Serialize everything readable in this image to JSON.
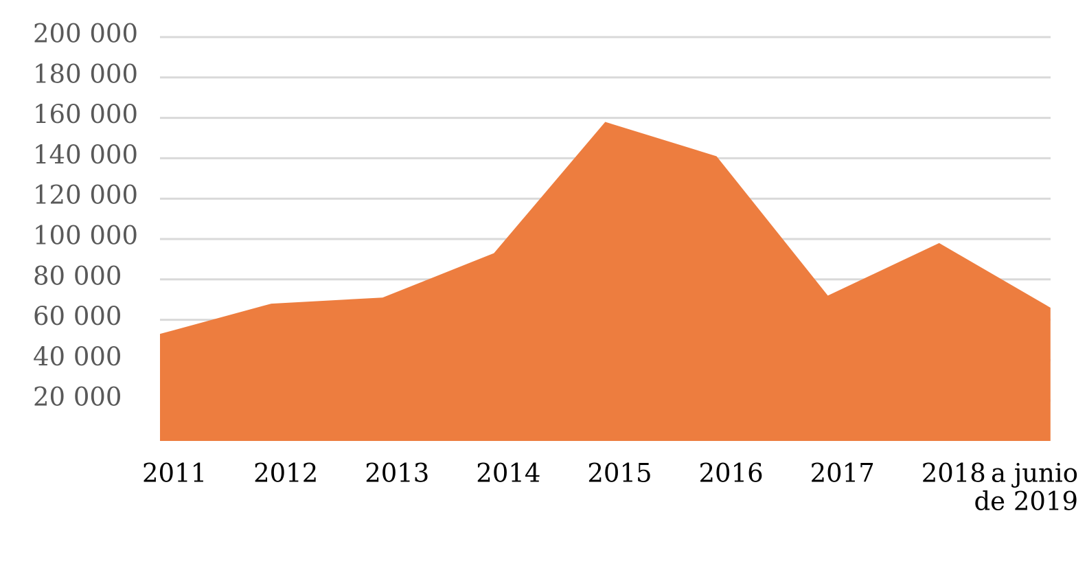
{
  "chart_data": {
    "type": "area",
    "title": "",
    "xlabel": "",
    "ylabel": "",
    "categories": [
      "2011",
      "2012",
      "2013",
      "2014",
      "2015",
      "2016",
      "2017",
      "2018",
      "a junio de 2019"
    ],
    "category_lines": [
      [
        "2011"
      ],
      [
        "2012"
      ],
      [
        "2013"
      ],
      [
        "2014"
      ],
      [
        "2015"
      ],
      [
        "2016"
      ],
      [
        "2017"
      ],
      [
        "2018"
      ],
      [
        "a junio",
        "de 2019"
      ]
    ],
    "values": [
      53000,
      68000,
      71000,
      93000,
      158000,
      141000,
      72000,
      98000,
      66000
    ],
    "ylim": [
      0,
      200000
    ],
    "yticks": [
      20000,
      40000,
      60000,
      80000,
      100000,
      120000,
      140000,
      160000,
      180000,
      200000
    ],
    "ytick_labels": [
      "20 000",
      "40 000",
      "60 000",
      "80 000",
      "100 000",
      "120 000",
      "140 000",
      "160 000",
      "180 000",
      "200 000"
    ],
    "grid": true,
    "legend": "none",
    "colors": {
      "area": "#ED7D3F",
      "grid": "#D9D9D9",
      "ytick_text": "#595959",
      "xtick_text": "#000000"
    }
  }
}
